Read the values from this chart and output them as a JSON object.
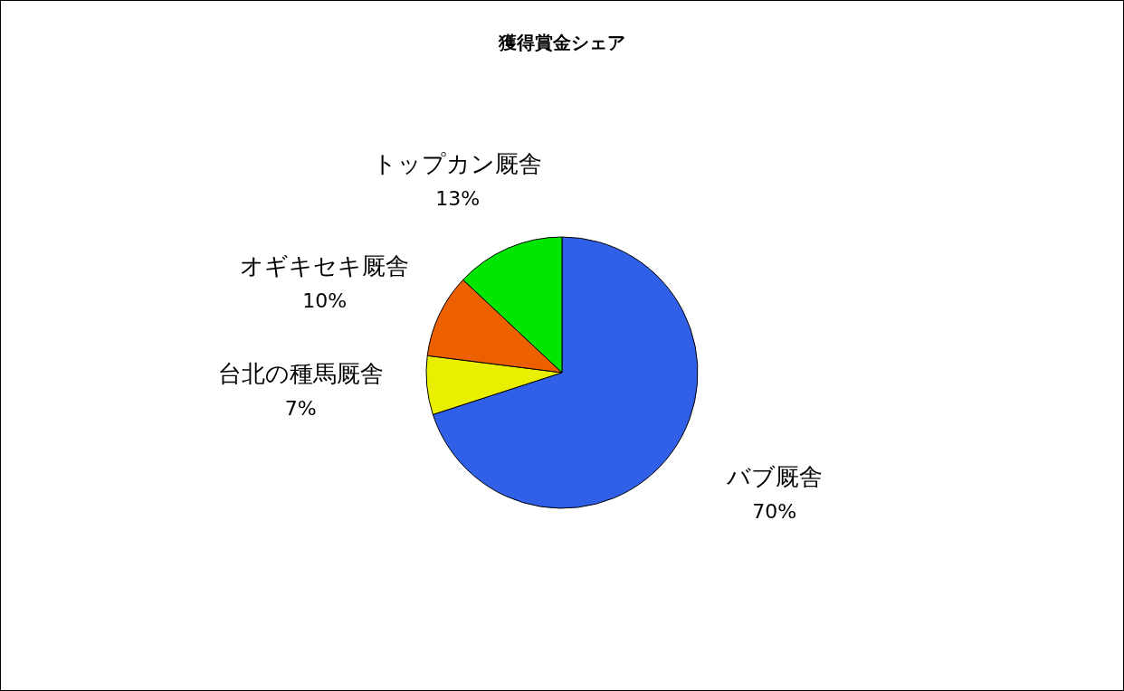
{
  "chart_data": {
    "type": "pie",
    "title": "獲得賞金シェア",
    "categories": [
      "バブ厩舎",
      "台北の種馬厩舎",
      "オギキセキ厩舎",
      "トップカン厩舎"
    ],
    "values": [
      70,
      7,
      10,
      13
    ],
    "colors": [
      "#3060e8",
      "#e8f000",
      "#ec6000",
      "#00e600"
    ],
    "value_labels": [
      "70%",
      "7%",
      "10%",
      "13%"
    ],
    "legend": false
  }
}
